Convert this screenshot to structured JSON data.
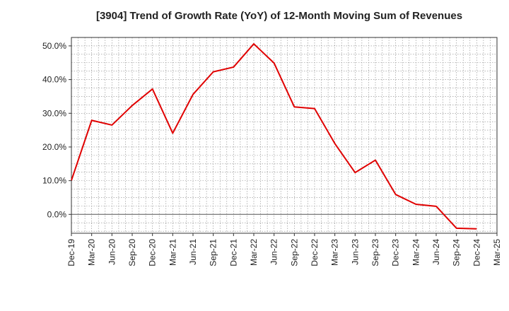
{
  "chart_data": {
    "type": "line",
    "title": "[3904]  Trend of Growth Rate (YoY) of 12-Month Moving Sum of Revenues",
    "xlabel": "",
    "ylabel": "",
    "x_tick_labels": [
      "Dec-19",
      "Mar-20",
      "Jun-20",
      "Sep-20",
      "Dec-20",
      "Mar-21",
      "Jun-21",
      "Sep-21",
      "Dec-21",
      "Mar-22",
      "Jun-22",
      "Sep-22",
      "Dec-22",
      "Mar-23",
      "Jun-23",
      "Sep-23",
      "Dec-23",
      "Mar-24",
      "Jun-24",
      "Sep-24",
      "Dec-24",
      "Mar-25"
    ],
    "y_ticks": [
      0,
      10,
      20,
      30,
      40,
      50
    ],
    "y_tick_labels": [
      "0.0%",
      "10.0%",
      "20.0%",
      "30.0%",
      "40.0%",
      "50.0%"
    ],
    "ylim": [
      -5.6,
      52.5
    ],
    "grid": true,
    "series": [
      {
        "color": "#e00000",
        "x": [
          "Dec-19",
          "Mar-20",
          "Jun-20",
          "Sep-20",
          "Dec-20",
          "Mar-21",
          "Jun-21",
          "Sep-21",
          "Dec-21",
          "Mar-22",
          "Jun-22",
          "Sep-22",
          "Dec-22",
          "Mar-23",
          "Jun-23",
          "Sep-23",
          "Dec-23",
          "Mar-24",
          "Jun-24",
          "Sep-24",
          "Dec-24"
        ],
        "values": [
          10.1,
          27.9,
          26.5,
          32.3,
          37.2,
          24.1,
          35.6,
          42.3,
          43.7,
          50.6,
          44.9,
          31.9,
          31.4,
          21.0,
          12.4,
          16.1,
          5.9,
          3.0,
          2.4,
          -4.1,
          -4.3
        ]
      }
    ]
  }
}
